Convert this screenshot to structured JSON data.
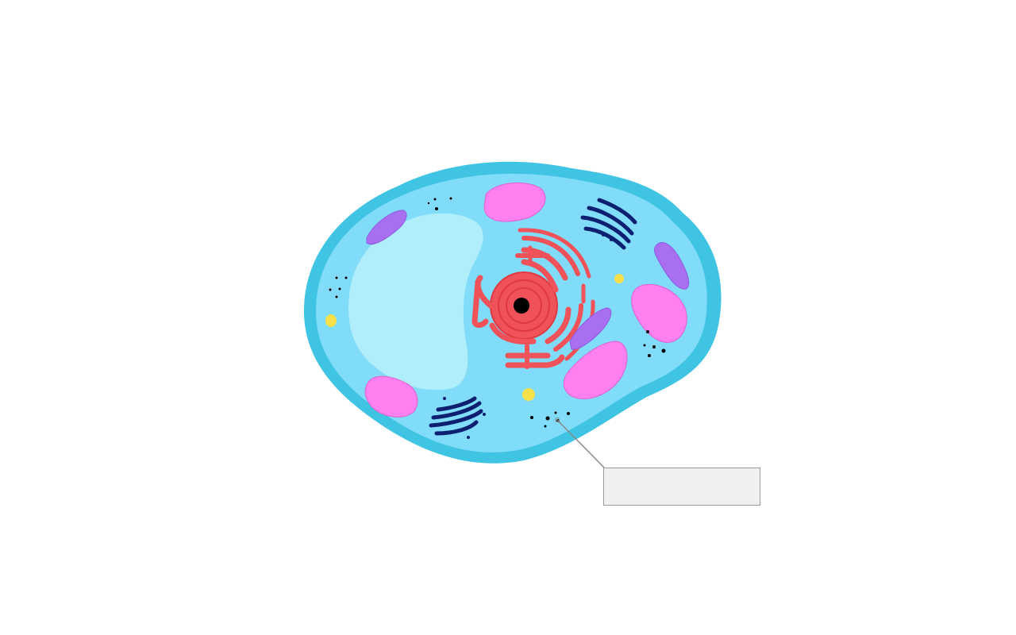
{
  "diagram": {
    "label_box": {
      "text": ""
    }
  },
  "colors": {
    "background": "#ffffff",
    "membrane": "#40c4e4",
    "cytoplasm": "#80dcf8",
    "vacuole": "#b0eefc",
    "nucleus": "#f0525a",
    "nucleolus": "#000000",
    "mitochondria": "#ff80ee",
    "lysosome": "#a870f0",
    "golgi": "#0c1f70",
    "granule": "#f7e04a",
    "ribosome": "#000000",
    "label_box_fill": "#f0f0f0",
    "label_box_border": "#9a9a9a",
    "leader_line": "#888888"
  }
}
